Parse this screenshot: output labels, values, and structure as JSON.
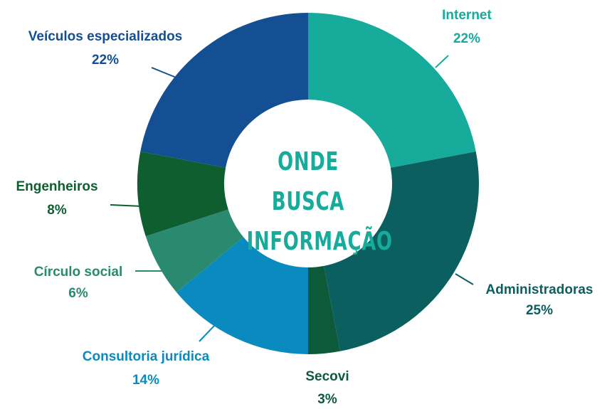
{
  "chart_data": {
    "type": "donut",
    "title": "ONDE BUSCA INFORMAÇÃO",
    "categories": [
      "Internet",
      "Administradoras",
      "Secovi",
      "Consultoria jurídica",
      "Círculo social",
      "Engenheiros",
      "Veículos especializados"
    ],
    "values": [
      22,
      25,
      3,
      14,
      6,
      8,
      22
    ],
    "value_labels": [
      "22%",
      "25%",
      "3%",
      "14%",
      "6%",
      "8%",
      "22%"
    ],
    "colors": [
      "#17ab9c",
      "#0b5f5e",
      "#0d5a3b",
      "#0a8bbf",
      "#2a8a6f",
      "#0e5e30",
      "#134f92"
    ]
  }
}
